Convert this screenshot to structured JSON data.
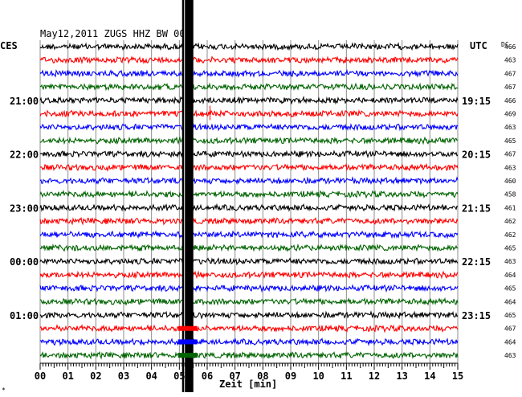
{
  "header": {
    "title": "May12,2011   ZUGS HHZ BW 00",
    "left_label": "CES",
    "right_label": "UTC",
    "dc_label": "DC"
  },
  "footer": {
    "xlabel": "Zeit [min]",
    "corner_mark": "*"
  },
  "colors": {
    "trace_cycle": [
      "#000000",
      "#ff0000",
      "#0000ff",
      "#006400"
    ],
    "grid": "#8c8c8c",
    "event_band": "#000000"
  },
  "chart_data": {
    "type": "line",
    "description_type": "helicorder",
    "title": "May12,2011   ZUGS HHZ BW 00",
    "xlabel": "Zeit [min]",
    "x_ticks": [
      "00",
      "01",
      "02",
      "03",
      "04",
      "05",
      "06",
      "07",
      "08",
      "09",
      "10",
      "11",
      "12",
      "13",
      "14",
      "15"
    ],
    "xlim": [
      0,
      15
    ],
    "local_time_labels": [
      {
        "row": 4,
        "label": "21:00"
      },
      {
        "row": 8,
        "label": "22:00"
      },
      {
        "row": 12,
        "label": "23:00"
      },
      {
        "row": 16,
        "label": "00:00"
      },
      {
        "row": 20,
        "label": "01:00"
      }
    ],
    "utc_time_labels": [
      {
        "row": 4,
        "label": "19:15"
      },
      {
        "row": 8,
        "label": "20:15"
      },
      {
        "row": 12,
        "label": "21:15"
      },
      {
        "row": 16,
        "label": "22:15"
      },
      {
        "row": 20,
        "label": "23:15"
      }
    ],
    "dc_values": [
      466,
      463,
      467,
      467,
      466,
      469,
      463,
      465,
      467,
      463,
      460,
      458,
      461,
      462,
      462,
      465,
      463,
      464,
      465,
      464,
      465,
      467,
      464,
      463
    ],
    "event_minute": 5.3
  }
}
